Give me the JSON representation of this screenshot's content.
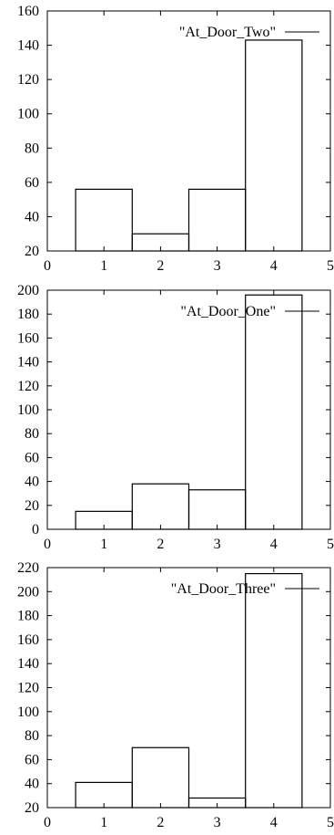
{
  "chart_data": [
    {
      "type": "bar",
      "x": [
        1,
        2,
        3,
        4
      ],
      "values": [
        56,
        30,
        56,
        143
      ],
      "series": [
        {
          "name": "\"At_Door_Two\"",
          "values": [
            56,
            30,
            56,
            143
          ]
        }
      ],
      "xlim": [
        0,
        5
      ],
      "ylim": [
        20,
        160
      ],
      "xticks": [
        "0",
        "1",
        "2",
        "3",
        "4",
        "5"
      ],
      "yticks": [
        "20",
        "40",
        "60",
        "80",
        "100",
        "120",
        "140",
        "160"
      ],
      "legend": "top-right",
      "grid": false
    },
    {
      "type": "bar",
      "x": [
        1,
        2,
        3,
        4
      ],
      "values": [
        15,
        38,
        33,
        196
      ],
      "series": [
        {
          "name": "\"At_Door_One\"",
          "values": [
            15,
            38,
            33,
            196
          ]
        }
      ],
      "xlim": [
        0,
        5
      ],
      "ylim": [
        0,
        200
      ],
      "xticks": [
        "0",
        "1",
        "2",
        "3",
        "4",
        "5"
      ],
      "yticks": [
        "0",
        "20",
        "40",
        "60",
        "80",
        "100",
        "120",
        "140",
        "160",
        "180",
        "200"
      ],
      "legend": "top-right",
      "grid": false
    },
    {
      "type": "bar",
      "x": [
        1,
        2,
        3,
        4
      ],
      "values": [
        41,
        70,
        28,
        215
      ],
      "series": [
        {
          "name": "\"At_Door_Three\"",
          "values": [
            41,
            70,
            28,
            215
          ]
        }
      ],
      "xlim": [
        0,
        5
      ],
      "ylim": [
        20,
        220
      ],
      "xticks": [
        "0",
        "1",
        "2",
        "3",
        "4",
        "5"
      ],
      "yticks": [
        "20",
        "40",
        "60",
        "80",
        "100",
        "120",
        "140",
        "160",
        "180",
        "200",
        "220"
      ],
      "legend": "top-right",
      "grid": false
    }
  ]
}
